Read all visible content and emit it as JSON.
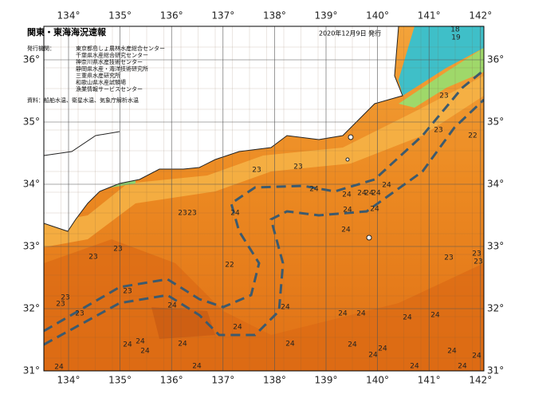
{
  "header": {
    "title": "関東・東海海況速報",
    "date": "2020年12月9日 発行"
  },
  "info": {
    "issuer_label": "発行機関：",
    "issuers": [
      "東京都島しょ農林水産総合センター",
      "千葉県水産総合研究センター",
      "神奈川県水産技術センター",
      "静岡県水産・海洋技術研究所",
      "三重県水産研究所",
      "和歌山県水産試験場",
      "漁業情報サービスセンター"
    ],
    "source": "資料：船舶水温、衛星水温、気象庁解析水温"
  },
  "map": {
    "lon_ticks": [
      {
        "value": 134,
        "label": "134°"
      },
      {
        "value": 135,
        "label": "135°"
      },
      {
        "value": 136,
        "label": "136°"
      },
      {
        "value": 137,
        "label": "137°"
      },
      {
        "value": 138,
        "label": "138°"
      },
      {
        "value": 139,
        "label": "139°"
      },
      {
        "value": 140,
        "label": "140°"
      },
      {
        "value": 141,
        "label": "141°"
      },
      {
        "value": 142,
        "label": "142°"
      }
    ],
    "lat_ticks": [
      {
        "value": 31,
        "label": "31°"
      },
      {
        "value": 32,
        "label": "32°"
      },
      {
        "value": 33,
        "label": "33°"
      },
      {
        "value": 34,
        "label": "34°"
      },
      {
        "value": 35,
        "label": "35°"
      },
      {
        "value": 36,
        "label": "36°"
      }
    ],
    "contour_labels": [
      18,
      19,
      23,
      23,
      22,
      23,
      23,
      24,
      24,
      24,
      24,
      24,
      24,
      24,
      24,
      23,
      23,
      24,
      24,
      23,
      23,
      22,
      23,
      23,
      23,
      23,
      23,
      23,
      23,
      24,
      24,
      24,
      24,
      24,
      24,
      24,
      24,
      24,
      24,
      24,
      24,
      24,
      24,
      24,
      24,
      24,
      24,
      24,
      24,
      24
    ]
  }
}
